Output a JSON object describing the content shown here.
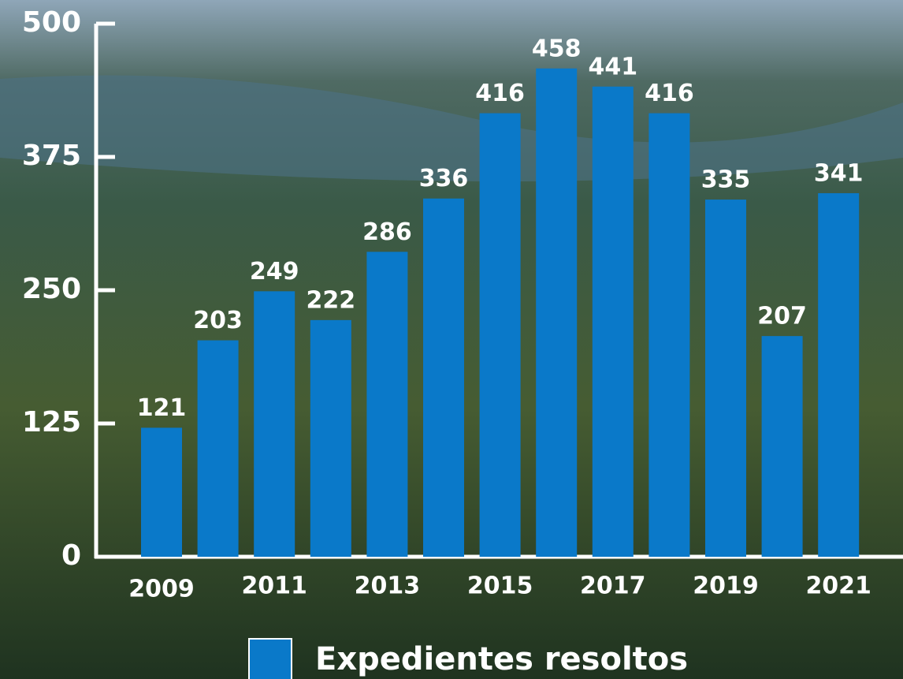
{
  "chart_data": {
    "type": "bar",
    "categories": [
      "2009",
      null,
      "2011",
      null,
      "2013",
      null,
      "2015",
      null,
      "2017",
      null,
      "2019",
      null,
      "2021"
    ],
    "series": [
      {
        "name": "Expedientes resoltos",
        "color": "#0a79c9",
        "values": [
          121,
          203,
          249,
          222,
          286,
          336,
          416,
          458,
          441,
          416,
          335,
          207,
          341
        ]
      }
    ],
    "ylim": [
      0,
      500
    ],
    "yticks": [
      0,
      125,
      250,
      375,
      500
    ],
    "grid": false,
    "legend": "bottom"
  }
}
